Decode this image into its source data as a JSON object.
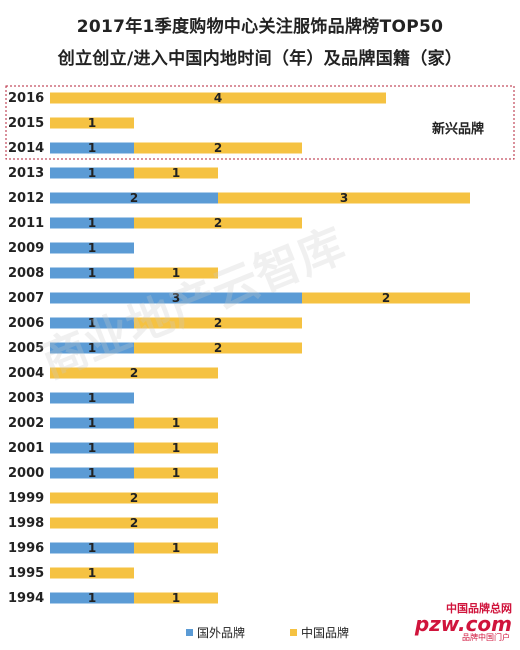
{
  "chart_data": {
    "type": "bar",
    "orientation": "horizontal",
    "stacked": true,
    "title": "2017年1季度购物中心关注服饰品牌榜TOP50",
    "subtitle": "创立创立/进入中国内地时间（年）及品牌国籍（家）",
    "categories": [
      "2016",
      "2015",
      "2014",
      "2013",
      "2012",
      "2011",
      "2009",
      "2008",
      "2007",
      "2006",
      "2005",
      "2004",
      "2003",
      "2002",
      "2001",
      "2000",
      "1999",
      "1998",
      "1996",
      "1995",
      "1994"
    ],
    "series": [
      {
        "name": "国外品牌",
        "color": "#5b9bd5",
        "values": [
          0,
          0,
          1,
          1,
          2,
          1,
          1,
          1,
          3,
          1,
          1,
          0,
          1,
          1,
          1,
          1,
          0,
          0,
          1,
          0,
          1
        ]
      },
      {
        "name": "中国品牌",
        "color": "#f5c242",
        "values": [
          4,
          1,
          2,
          1,
          3,
          2,
          0,
          1,
          2,
          2,
          2,
          2,
          0,
          1,
          1,
          1,
          2,
          2,
          1,
          1,
          1
        ]
      }
    ],
    "legend_position": "bottom",
    "annotation": "新兴品牌",
    "xlim": [
      0,
      5
    ]
  },
  "watermark": "商业地产云智库",
  "brand": {
    "top": "中国品牌总网",
    "main": "pzw.com",
    "sub": "品牌中国门户"
  }
}
